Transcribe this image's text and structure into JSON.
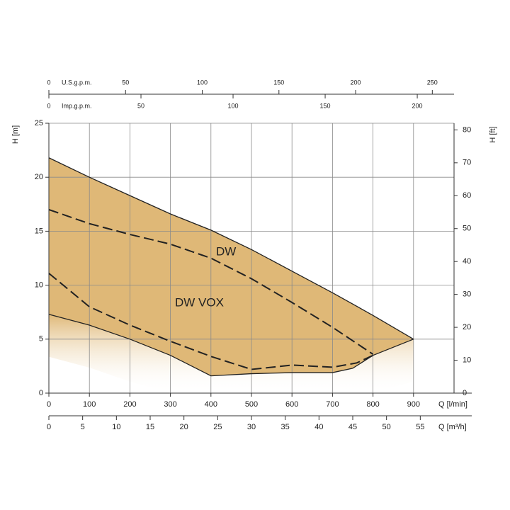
{
  "chart_data": {
    "type": "line",
    "xlabel": "Q [l/min]",
    "ylabel": "H [m]",
    "y2label": "H [ft]",
    "xlim": [
      0,
      1000
    ],
    "xticks": [
      0,
      100,
      200,
      300,
      400,
      500,
      600,
      700,
      800,
      900
    ],
    "ylim": [
      0,
      25
    ],
    "yticks": [
      0,
      5,
      10,
      15,
      20,
      25
    ],
    "y2lim": [
      0,
      82.02
    ],
    "y2ticks": [
      0,
      10,
      20,
      30,
      40,
      50,
      60,
      70,
      80
    ],
    "grid": true,
    "extra_x_axes": [
      {
        "label": "Q [m³/h]",
        "position": "bottom",
        "lim": [
          0,
          60
        ],
        "ticks": [
          0,
          5,
          10,
          15,
          20,
          25,
          30,
          35,
          40,
          45,
          50,
          55
        ]
      },
      {
        "label": "U.S.g.p.m.",
        "position": "top",
        "lim": [
          0,
          264.17
        ],
        "ticks": [
          0,
          50,
          100,
          150,
          200,
          250
        ]
      },
      {
        "label": "Imp.g.p.m.",
        "position": "top",
        "lim": [
          0,
          219.97
        ],
        "ticks": [
          0,
          50,
          100,
          150,
          200
        ]
      }
    ],
    "fill_color": "#dfb877",
    "fill_between": [
      0,
      1
    ],
    "series": [
      {
        "color": "#222222",
        "dashed": false,
        "x": [
          0,
          100,
          200,
          300,
          400,
          500,
          600,
          700,
          800,
          900
        ],
        "values": [
          21.8,
          20,
          18.3,
          16.6,
          15.1,
          13.3,
          11.3,
          9.3,
          7.2,
          5.0
        ]
      },
      {
        "color": "#222222",
        "dashed": false,
        "x": [
          0,
          100,
          200,
          300,
          400,
          500,
          600,
          700,
          750,
          800,
          900
        ],
        "values": [
          7.3,
          6.3,
          5.0,
          3.5,
          1.6,
          1.8,
          1.9,
          1.9,
          2.3,
          3.5,
          5.0
        ]
      },
      {
        "color": "#222222",
        "dashed": true,
        "x": [
          0,
          100,
          200,
          300,
          400,
          500,
          600,
          700,
          800
        ],
        "values": [
          17,
          15.7,
          14.7,
          13.8,
          12.5,
          10.6,
          8.4,
          6.1,
          3.6
        ]
      },
      {
        "color": "#222222",
        "dashed": true,
        "x": [
          0,
          100,
          200,
          300,
          400,
          500,
          600,
          700,
          760,
          800
        ],
        "values": [
          11.1,
          8.0,
          6.3,
          4.8,
          3.4,
          2.2,
          2.6,
          2.4,
          2.8,
          3.5
        ]
      }
    ],
    "annotations": [
      "DW",
      "DW VOX"
    ]
  }
}
